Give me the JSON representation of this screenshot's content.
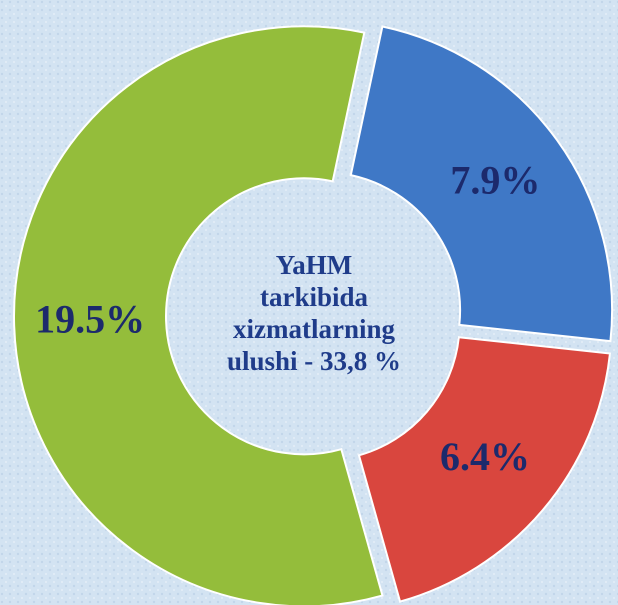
{
  "chart_data": {
    "type": "donut",
    "categories": [
      null,
      null,
      null
    ],
    "values": [
      7.9,
      6.4,
      19.5
    ],
    "value_labels": [
      "7.9%",
      "6.4%",
      "19.5%"
    ],
    "colors": [
      "#3f78c6",
      "#d9463e",
      "#94bd3b"
    ],
    "center_text": [
      "YaHM",
      "tarkibida",
      "xizmatlarning",
      "ulushi - 33,8 %"
    ]
  }
}
